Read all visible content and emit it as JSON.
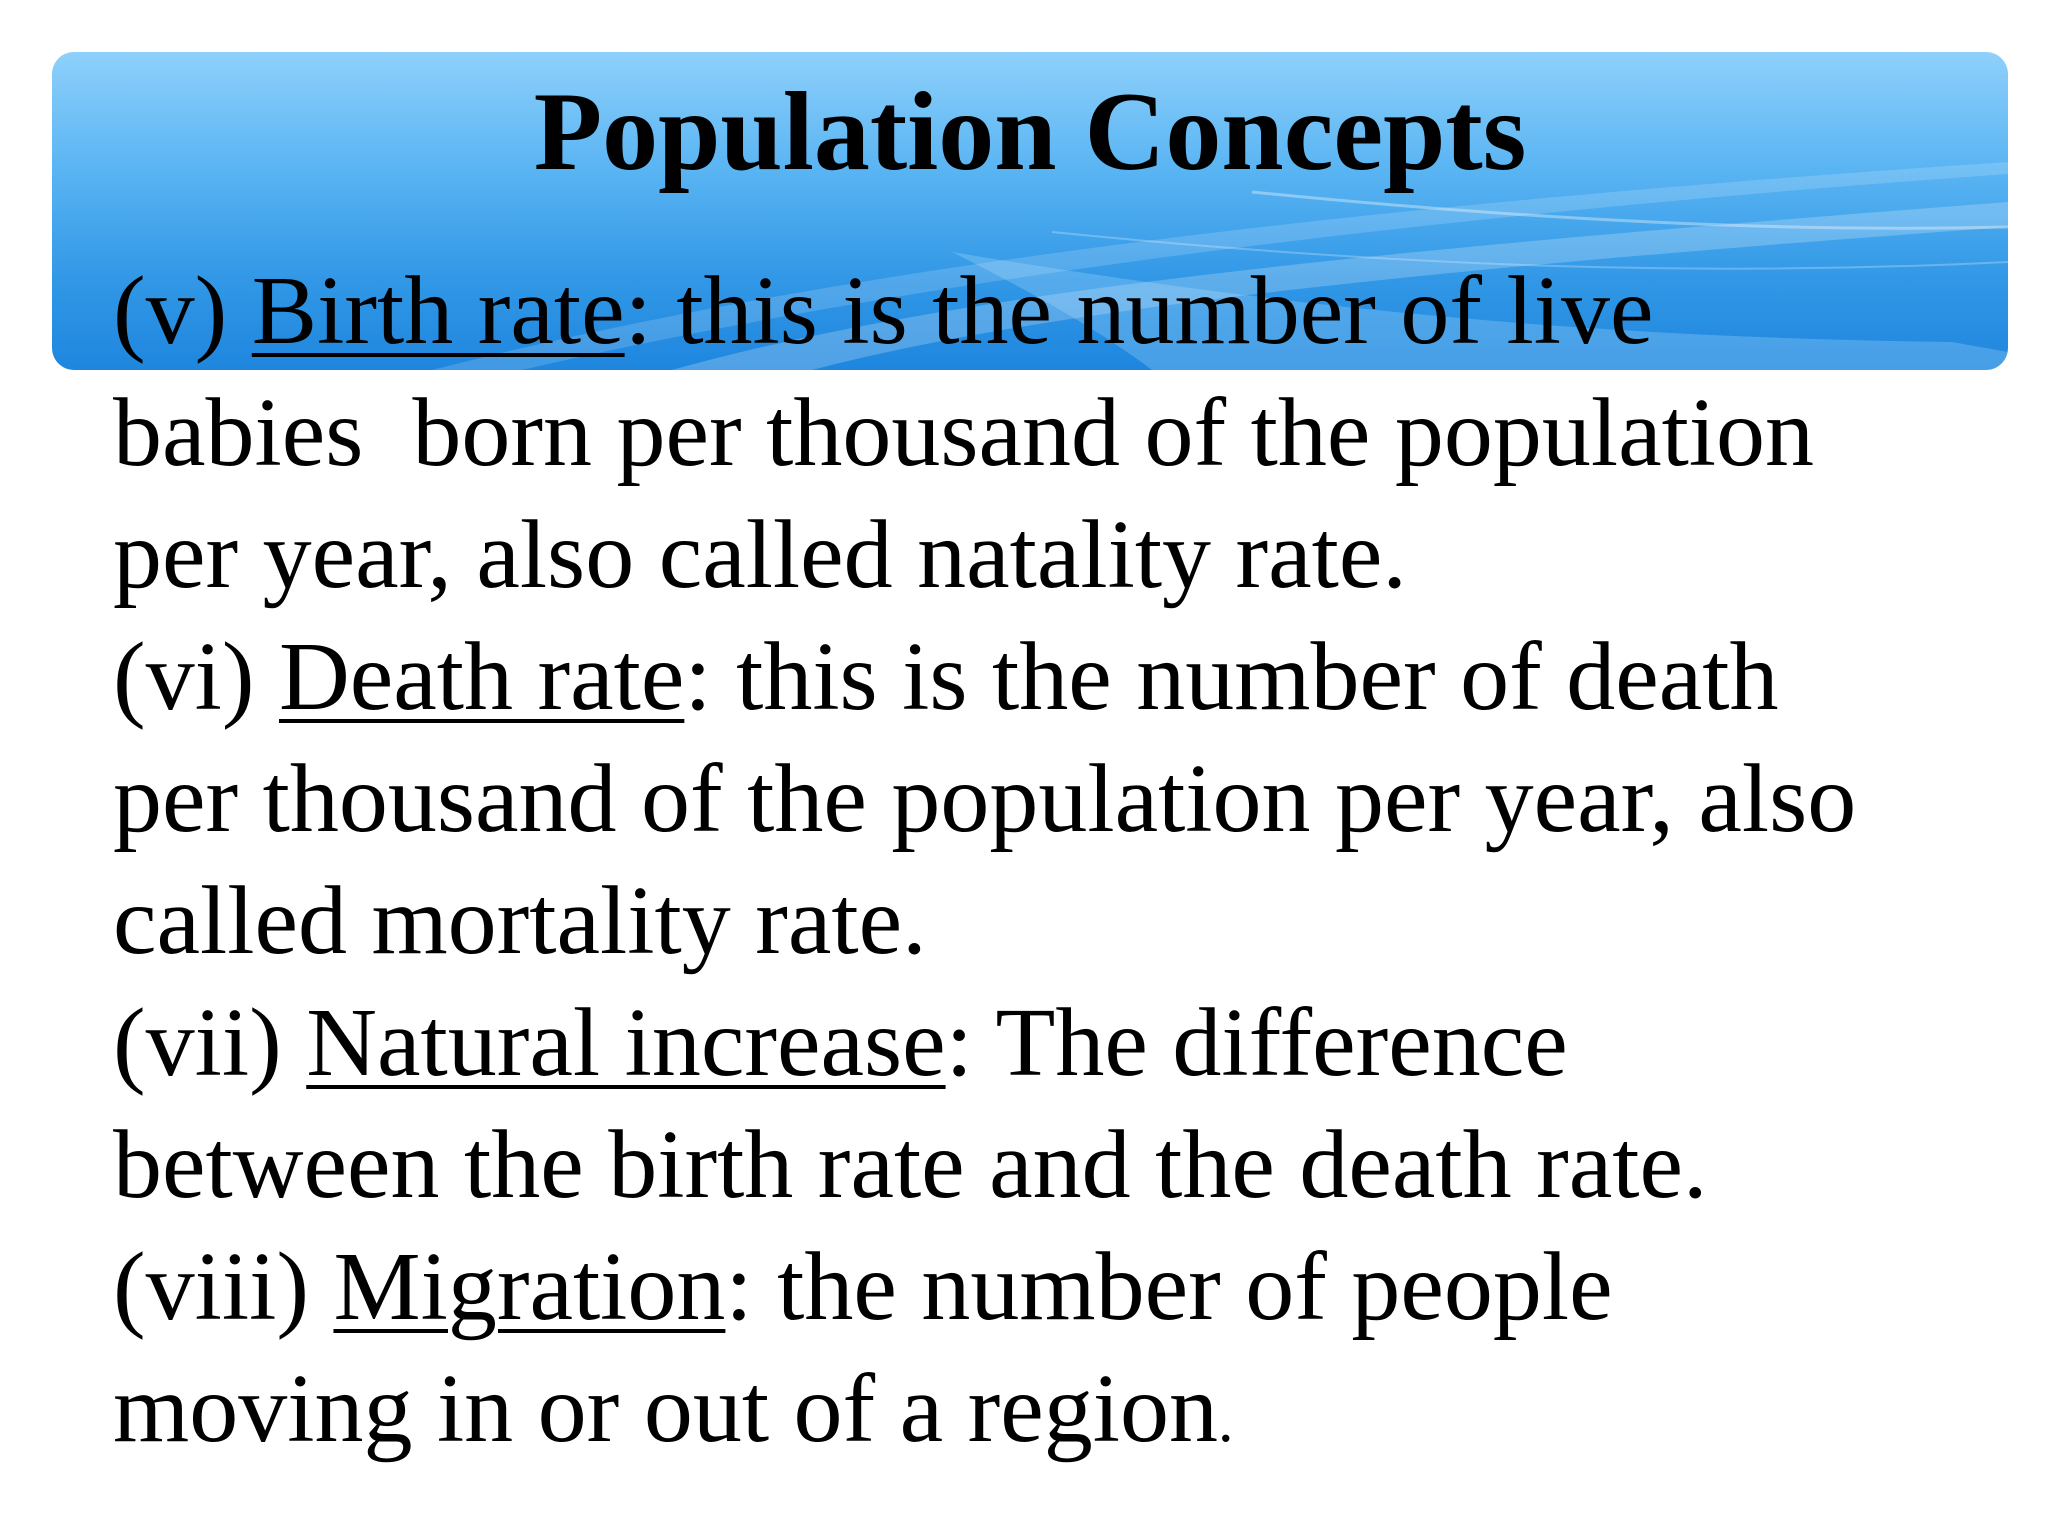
{
  "slide": {
    "title": "Population Concepts",
    "colors": {
      "banner_top": "#8fd0fb",
      "banner_bottom": "#1e86de",
      "text": "#000000",
      "background": "#ffffff"
    }
  },
  "items": [
    {
      "number": "(v)",
      "term": "Birth rate",
      "first_line_rest": ": this is the number of live",
      "lines": [
        "babies  born per thousand of the population",
        "per year, also called natality rate."
      ]
    },
    {
      "number": "(vi)",
      "term": "Death rate",
      "first_line_rest": ": this is the number of death",
      "lines": [
        "per thousand of the population per year, also",
        "called mortality rate."
      ]
    },
    {
      "number": "(vii)",
      "term": "Natural increase",
      "first_line_rest": ": The difference",
      "lines": [
        "between the birth rate and the death rate."
      ]
    },
    {
      "number": "(viii)",
      "term": "Migration",
      "first_line_rest": ": the number of people",
      "lines": [
        "moving in or out of a region"
      ],
      "final_mark": "."
    }
  ]
}
